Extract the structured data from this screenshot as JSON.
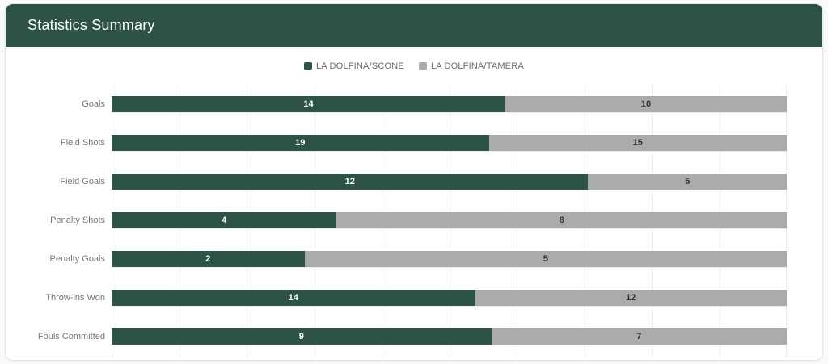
{
  "header": {
    "title": "Statistics Summary"
  },
  "colors": {
    "header_bg": "#2d5348",
    "card_background": "#ffffff",
    "card_border": "#e4e6e6",
    "gridline": "#ededed",
    "category_label_text": "#757575",
    "legend_text": "#6b6b6b"
  },
  "chart_data": {
    "type": "bar",
    "orientation": "horizontal",
    "stacking": "percent",
    "title": "",
    "xlabel": "",
    "ylabel": "",
    "xlim": [
      0,
      100
    ],
    "grid": "vertical gridlines every 10%",
    "legend_position": "top-center",
    "categories": [
      "Goals",
      "Field Shots",
      "Field Goals",
      "Penalty Shots",
      "Penalty Goals",
      "Throw-ins Won",
      "Fouls Committed"
    ],
    "series": [
      {
        "name": "LA DOLFINA/SCONE",
        "color": "#2d5348",
        "label_color": "#ffffff",
        "values": [
          14,
          19,
          12,
          4,
          2,
          14,
          9
        ]
      },
      {
        "name": "LA DOLFINA/TAMERA",
        "color": "#ababab",
        "label_color": "#333333",
        "values": [
          10,
          15,
          5,
          8,
          5,
          12,
          7
        ]
      }
    ]
  }
}
